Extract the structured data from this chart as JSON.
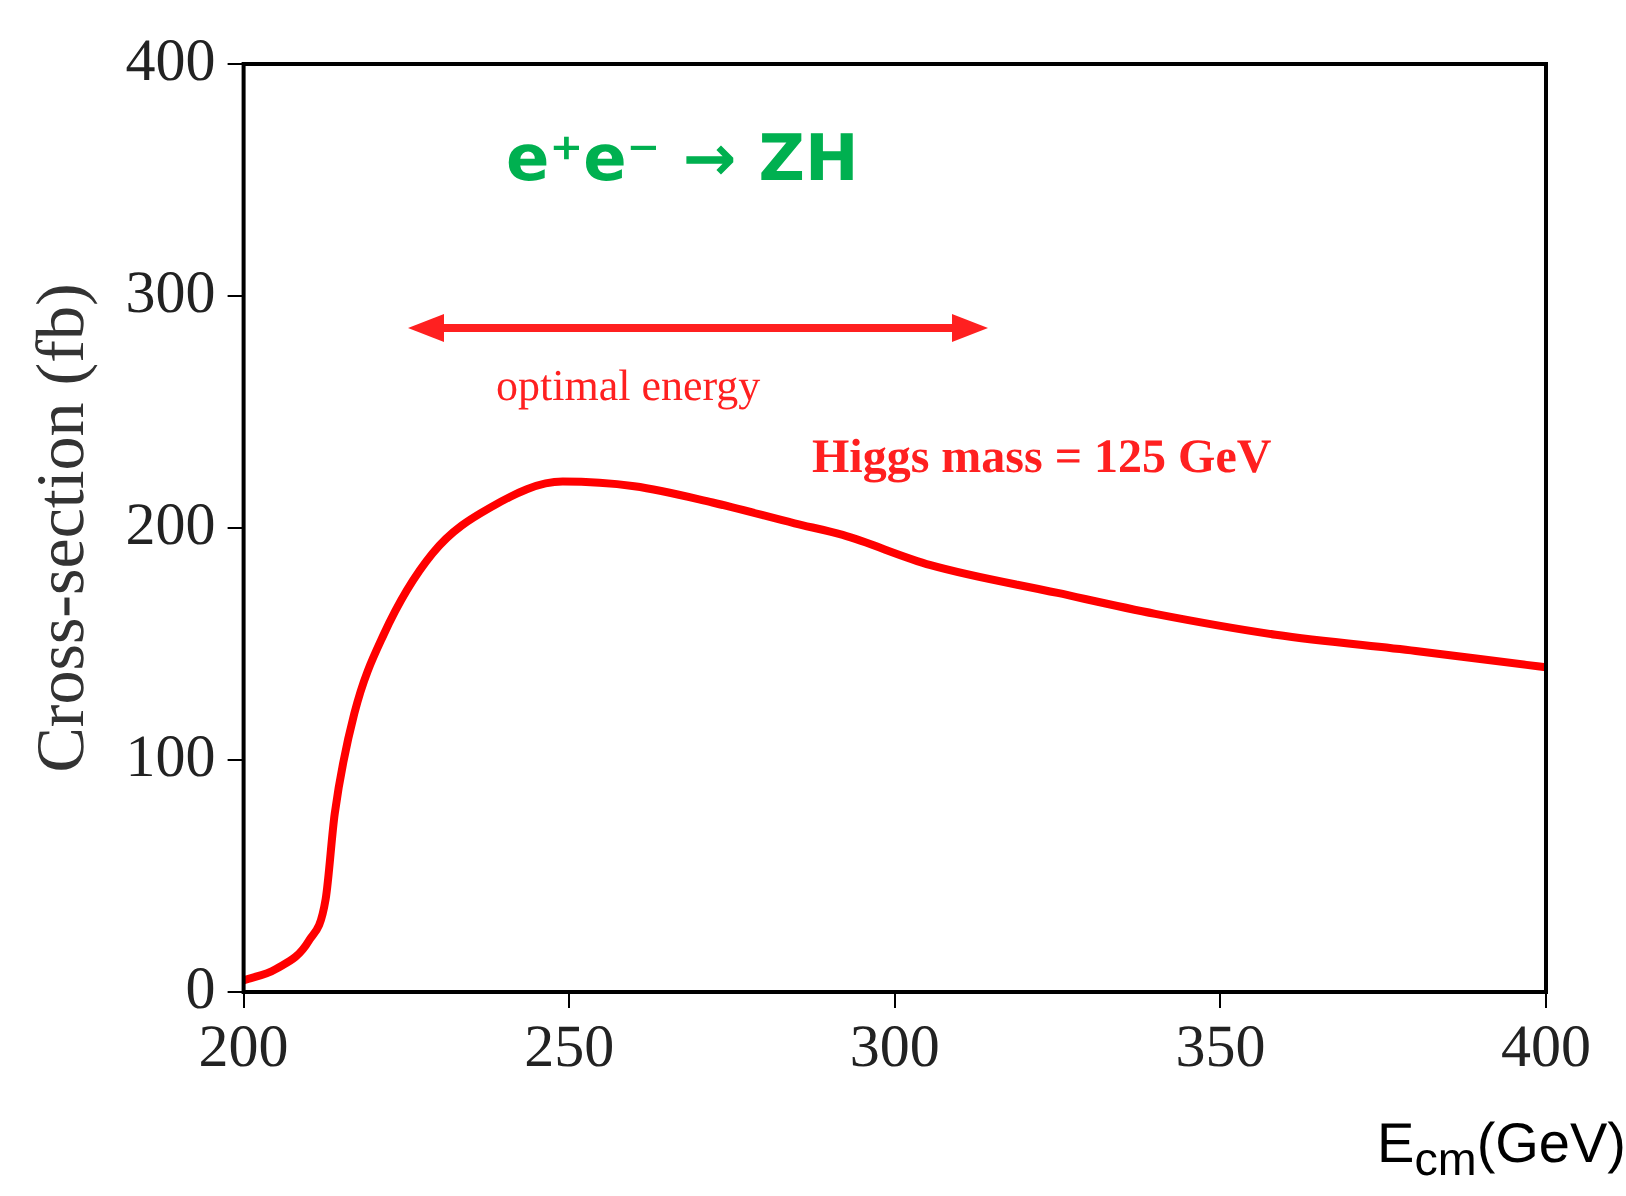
{
  "chart_data": {
    "type": "line",
    "xlabel": "E$_{cm}$(GeV)",
    "ylabel": "Cross-section (fb)",
    "annotations": [
      "e⁺e⁻ → ZH",
      "optimal energy",
      "Higgs mass = 125 GeV"
    ],
    "xlim": [
      200,
      400
    ],
    "xticks": [
      200,
      250,
      300,
      350,
      400
    ],
    "ylim": [
      0,
      400
    ],
    "yticks": [
      0,
      100,
      200,
      300,
      400
    ],
    "grid": false,
    "legend": false,
    "marker": "none",
    "line_style": "solid",
    "series": [
      {
        "color": "#ff0000",
        "x": [
          200,
          205,
          210,
          212.6,
          214,
          217,
          221.5,
          229,
          238,
          249,
          260,
          272,
          284.6,
          292,
          305.5,
          325,
          340,
          358.5,
          380,
          397,
          400
        ],
        "values": [
          5,
          10,
          22,
          40,
          77,
          120,
          154,
          189,
          209,
          220,
          218,
          211,
          202,
          197,
          184,
          172,
          163,
          154,
          147,
          141,
          140
        ]
      }
    ]
  }
}
